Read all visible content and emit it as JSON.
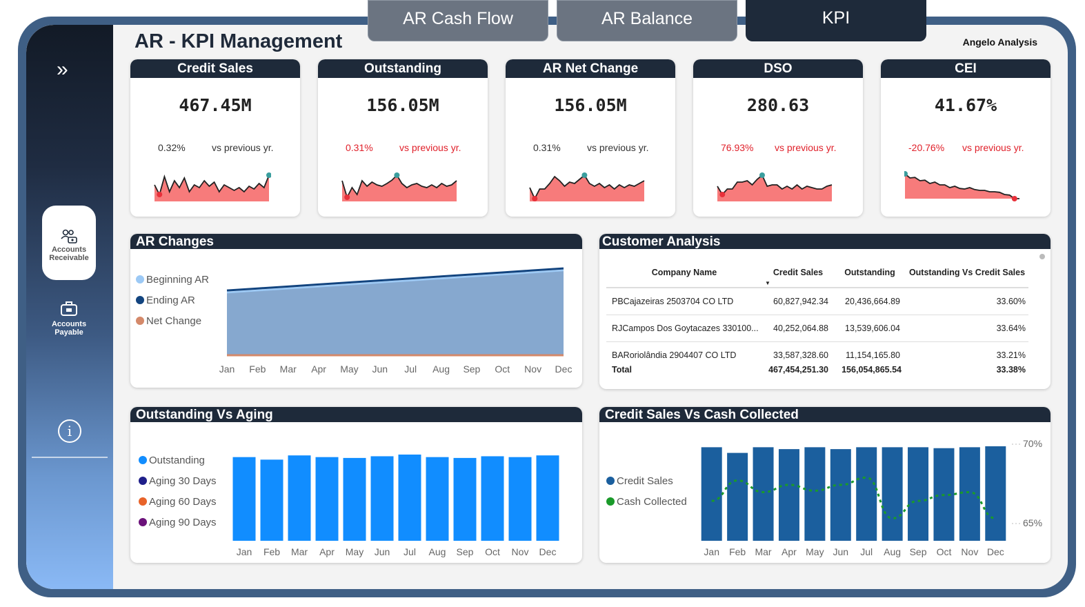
{
  "tabs": [
    {
      "label": "AR Cash Flow"
    },
    {
      "label": "AR Balance"
    },
    {
      "label": "KPI"
    }
  ],
  "page_title": "AR - KPI Management",
  "author": "Angelo Analysis",
  "sidebar": {
    "expand_glyph": "»",
    "items": [
      {
        "label_line1": "Accounts",
        "label_line2": "Receivable"
      },
      {
        "label_line1": "Accounts",
        "label_line2": "Payable"
      }
    ],
    "info_glyph": "i"
  },
  "kpis": [
    {
      "title": "Credit Sales",
      "value": "467.45M",
      "change": "0.32%",
      "compare": "vs previous yr.",
      "trend": "neutral"
    },
    {
      "title": "Outstanding",
      "value": "156.05M",
      "change": "0.31%",
      "compare": "vs previous yr.",
      "trend": "negative"
    },
    {
      "title": "AR Net Change",
      "value": "156.05M",
      "change": "0.31%",
      "compare": "vs previous yr.",
      "trend": "neutral"
    },
    {
      "title": "DSO",
      "value": "280.63",
      "change": "76.93%",
      "compare": "vs previous yr.",
      "trend": "negative"
    },
    {
      "title": "CEI",
      "value": "41.67%",
      "change": "-20.76%",
      "compare": "vs previous yr.",
      "trend": "negative"
    }
  ],
  "colors": {
    "navy": "#1e2a3a",
    "negative_red": "#e0202a",
    "spark_fill": "#f77b7b",
    "spark_high": "#3a9e9e",
    "spark_low": "#e8303a",
    "bar_blue": "#118dff",
    "bar_dark": "#1b5f9e",
    "cash_green": "#1a9a2a"
  },
  "panels": {
    "ar_changes": "AR Changes",
    "customer_analysis": "Customer Analysis",
    "outstanding_aging": "Outstanding Vs Aging",
    "credit_cash": "Credit Sales Vs Cash Collected"
  },
  "customer_table": {
    "headers": [
      "Company Name",
      "Credit Sales",
      "Outstanding",
      "Outstanding Vs Credit Sales"
    ],
    "rows": [
      [
        "PBCajazeiras 2503704 CO LTD",
        "60,827,942.34",
        "20,436,664.89",
        "33.60%"
      ],
      [
        "RJCampos Dos Goytacazes 330100...",
        "40,252,064.88",
        "13,539,606.04",
        "33.64%"
      ],
      [
        "BARoriolândia 2904407 CO LTD",
        "33,587,328.60",
        "11,154,165.80",
        "33.21%"
      ]
    ],
    "total": [
      "Total",
      "467,454,251.30",
      "156,054,865.54",
      "33.38%"
    ]
  },
  "chart_data": [
    {
      "type": "area",
      "title": "AR Changes",
      "categories": [
        "Jan",
        "Feb",
        "Mar",
        "Apr",
        "May",
        "Jun",
        "Jul",
        "Aug",
        "Sep",
        "Oct",
        "Nov",
        "Dec"
      ],
      "series": [
        {
          "name": "Beginning AR",
          "color": "#9cc9f5",
          "values": [
            100,
            103.2,
            106.4,
            109.6,
            112.8,
            116,
            119.2,
            122.4,
            125.6,
            128.8,
            132,
            135.2
          ]
        },
        {
          "name": "Ending AR",
          "color": "#12447f",
          "values": [
            103.2,
            106.4,
            109.6,
            112.8,
            116,
            119.2,
            122.4,
            125.6,
            128.8,
            132,
            135.2,
            138.4
          ]
        },
        {
          "name": "Net Change",
          "color": "#d4896a",
          "values": [
            0,
            0,
            0,
            0,
            0,
            0,
            0,
            0,
            0,
            0,
            0,
            0
          ]
        }
      ],
      "legend": "left"
    },
    {
      "type": "bar",
      "title": "Outstanding Vs Aging",
      "categories": [
        "Jan",
        "Feb",
        "Mar",
        "Apr",
        "May",
        "Jun",
        "Jul",
        "Aug",
        "Sep",
        "Oct",
        "Nov",
        "Dec"
      ],
      "series": [
        {
          "name": "Outstanding",
          "color": "#118dff",
          "values": [
            99,
            96,
            101,
            99,
            98,
            100,
            102,
            99,
            98,
            100,
            99,
            101
          ]
        },
        {
          "name": "Aging 30 Days",
          "color": "#1f1f8a",
          "values": [
            0,
            0,
            0,
            0,
            0,
            0,
            0,
            0,
            0,
            0,
            0,
            0
          ]
        },
        {
          "name": "Aging 60 Days",
          "color": "#e8632a",
          "values": [
            0,
            0,
            0,
            0,
            0,
            0,
            0,
            0,
            0,
            0,
            0,
            0
          ]
        },
        {
          "name": "Aging 90 Days",
          "color": "#6b127a",
          "values": [
            0,
            0,
            0,
            0,
            0,
            0,
            0,
            0,
            0,
            0,
            0,
            0
          ]
        }
      ],
      "legend": "left"
    },
    {
      "type": "bar",
      "title": "Credit Sales Vs Cash Collected",
      "categories": [
        "Jan",
        "Feb",
        "Mar",
        "Apr",
        "May",
        "Jun",
        "Jul",
        "Aug",
        "Sep",
        "Oct",
        "Nov",
        "Dec"
      ],
      "series": [
        {
          "name": "Credit Sales",
          "color": "#1b5f9e",
          "type": "bar",
          "values": [
            99,
            93,
            99,
            97,
            99,
            97,
            99,
            99,
            99,
            98,
            99,
            100
          ]
        },
        {
          "name": "Cash Collected",
          "color": "#1a9a2a",
          "type": "line",
          "axis": "right",
          "values": [
            66.2,
            67.6,
            66.8,
            67.3,
            66.9,
            67.3,
            67.8,
            65.0,
            66.2,
            66.6,
            66.8,
            65.0
          ]
        }
      ],
      "y2ticks": [
        "70%",
        "65%"
      ],
      "y2lim": [
        64.5,
        70
      ],
      "legend": "left"
    }
  ]
}
